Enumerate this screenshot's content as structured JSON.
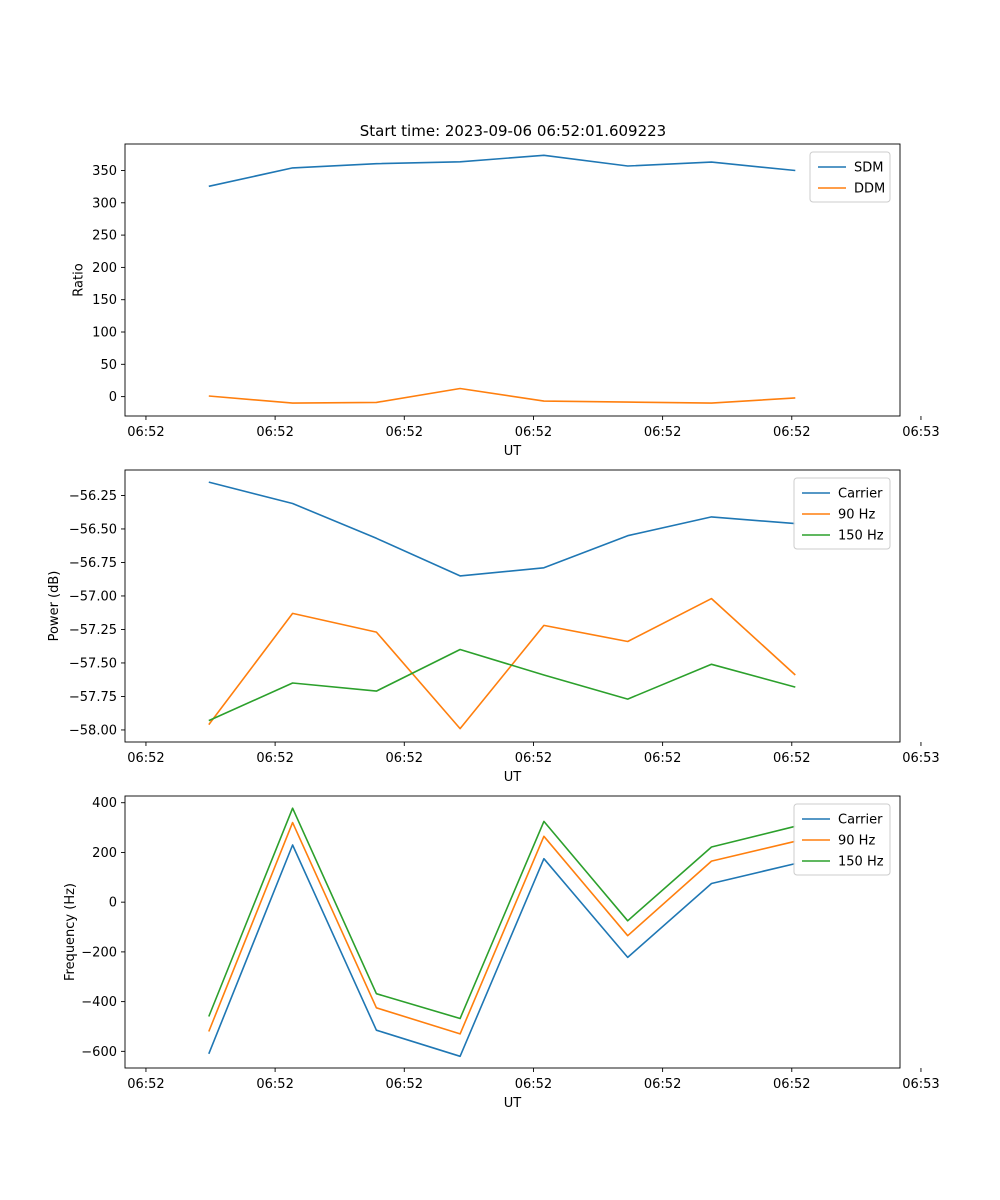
{
  "figure": {
    "title": "Start time: 2023-09-06 06:52:01.609223"
  },
  "chart_data": [
    {
      "type": "line",
      "xlabel": "UT",
      "ylabel": "Ratio",
      "x": [
        0.6,
        1.2,
        1.8,
        2.4,
        3.0,
        3.6,
        4.2,
        4.8
      ],
      "xlim": [
        0,
        5.55
      ],
      "xticks": [
        0.15,
        1.075,
        2.0,
        2.925,
        3.85,
        4.775,
        5.7
      ],
      "xtick_labels": [
        "06:52",
        "06:52",
        "06:52",
        "06:52",
        "06:52",
        "06:52",
        "06:53"
      ],
      "ylim": [
        -30,
        391
      ],
      "yticks": [
        0,
        50,
        100,
        150,
        200,
        250,
        300,
        350
      ],
      "ytick_labels": [
        "0",
        "50",
        "100",
        "150",
        "200",
        "250",
        "300",
        "350"
      ],
      "series": [
        {
          "name": "SDM",
          "color": "#1f77b4",
          "values": [
            325.5,
            354,
            360.5,
            363.5,
            373.5,
            357,
            363,
            350
          ]
        },
        {
          "name": "DDM",
          "color": "#ff7f0e",
          "values": [
            1,
            -10,
            -9,
            12.5,
            -7,
            -8.5,
            -10,
            -2
          ]
        }
      ]
    },
    {
      "type": "line",
      "xlabel": "UT",
      "ylabel": "Power (dB)",
      "x": [
        0.6,
        1.2,
        1.8,
        2.4,
        3.0,
        3.6,
        4.2,
        4.8
      ],
      "xlim": [
        0,
        5.55
      ],
      "xticks": [
        0.15,
        1.075,
        2.0,
        2.925,
        3.85,
        4.775,
        5.7
      ],
      "xtick_labels": [
        "06:52",
        "06:52",
        "06:52",
        "06:52",
        "06:52",
        "06:52",
        "06:53"
      ],
      "ylim": [
        -58.09,
        -56.06
      ],
      "yticks": [
        -58.0,
        -57.75,
        -57.5,
        -57.25,
        -57.0,
        -56.75,
        -56.5,
        -56.25
      ],
      "ytick_labels": [
        "−58.00",
        "−57.75",
        "−57.50",
        "−57.25",
        "−57.00",
        "−56.75",
        "−56.50",
        "−56.25"
      ],
      "series": [
        {
          "name": "Carrier",
          "color": "#1f77b4",
          "values": [
            -56.15,
            -56.31,
            -56.57,
            -56.85,
            -56.79,
            -56.55,
            -56.41,
            -56.46
          ]
        },
        {
          "name": "90 Hz",
          "color": "#ff7f0e",
          "values": [
            -57.96,
            -57.13,
            -57.27,
            -57.99,
            -57.22,
            -57.34,
            -57.02,
            -57.59
          ]
        },
        {
          "name": "150 Hz",
          "color": "#2ca02c",
          "values": [
            -57.93,
            -57.65,
            -57.71,
            -57.4,
            -57.59,
            -57.77,
            -57.51,
            -57.68
          ]
        }
      ]
    },
    {
      "type": "line",
      "xlabel": "UT",
      "ylabel": "Frequency (Hz)",
      "x": [
        0.6,
        1.2,
        1.8,
        2.4,
        3.0,
        3.6,
        4.2,
        4.8
      ],
      "xlim": [
        0,
        5.55
      ],
      "xticks": [
        0.15,
        1.075,
        2.0,
        2.925,
        3.85,
        4.775,
        5.7
      ],
      "xtick_labels": [
        "06:52",
        "06:52",
        "06:52",
        "06:52",
        "06:52",
        "06:52",
        "06:53"
      ],
      "ylim": [
        -667,
        427
      ],
      "yticks": [
        -600,
        -400,
        -200,
        0,
        200,
        400
      ],
      "ytick_labels": [
        "−600",
        "−400",
        "−200",
        "0",
        "200",
        "400"
      ],
      "series": [
        {
          "name": "Carrier",
          "color": "#1f77b4",
          "values": [
            -610,
            230,
            -515,
            -620,
            175,
            -222,
            75,
            155
          ]
        },
        {
          "name": "90 Hz",
          "color": "#ff7f0e",
          "values": [
            -520,
            320,
            -425,
            -530,
            265,
            -135,
            165,
            245
          ]
        },
        {
          "name": "150 Hz",
          "color": "#2ca02c",
          "values": [
            -460,
            378,
            -368,
            -468,
            325,
            -75,
            222,
            305
          ]
        }
      ]
    }
  ]
}
